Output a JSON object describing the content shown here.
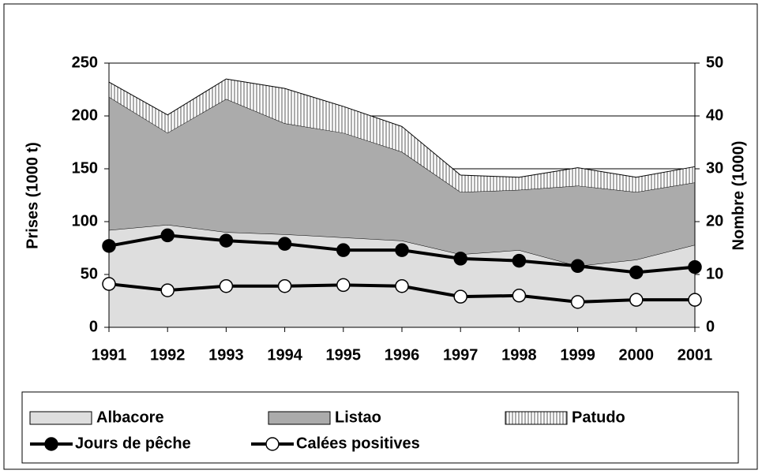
{
  "chart_data": {
    "type": "stacked_area_line",
    "categories": [
      "1991",
      "1992",
      "1993",
      "1994",
      "1995",
      "1996",
      "1997",
      "1998",
      "1999",
      "2000",
      "2001"
    ],
    "y_label": "Prises (1000 t)",
    "y2_label": "Nombre (1000)",
    "ylim": [
      0,
      250
    ],
    "yticks": [
      0,
      50,
      100,
      150,
      200,
      250
    ],
    "y2lim": [
      0,
      50
    ],
    "y2ticks": [
      0,
      10,
      20,
      30,
      40,
      50
    ],
    "grid": true,
    "series": [
      {
        "name": "Albacore",
        "color": "#dedede",
        "values": [
          92,
          97,
          90,
          88,
          85,
          82,
          69,
          73,
          58,
          64,
          78
        ]
      },
      {
        "name": "Listao",
        "color": "#ababab",
        "values": [
          126,
          87,
          126,
          105,
          99,
          84,
          59,
          57,
          76,
          64,
          59
        ]
      },
      {
        "name": "Patudo",
        "color": "#808080",
        "pattern": "vertical",
        "values": [
          14,
          17,
          19,
          33,
          25,
          24,
          16,
          12,
          17,
          14,
          15
        ]
      },
      {
        "name": "Jours de pêche",
        "color": "#000000",
        "marker_fill": "#000000",
        "axis": "y2",
        "values": [
          15.4,
          17.4,
          16.4,
          15.8,
          14.6,
          14.6,
          13,
          12.6,
          11.6,
          10.4,
          11.4
        ]
      },
      {
        "name": "Calées positives",
        "color": "#000000",
        "marker_fill": "#ffffff",
        "axis": "y2",
        "values": [
          8.2,
          7,
          7.8,
          7.8,
          8,
          7.8,
          5.8,
          6,
          4.8,
          5.2,
          5.2
        ]
      }
    ]
  }
}
